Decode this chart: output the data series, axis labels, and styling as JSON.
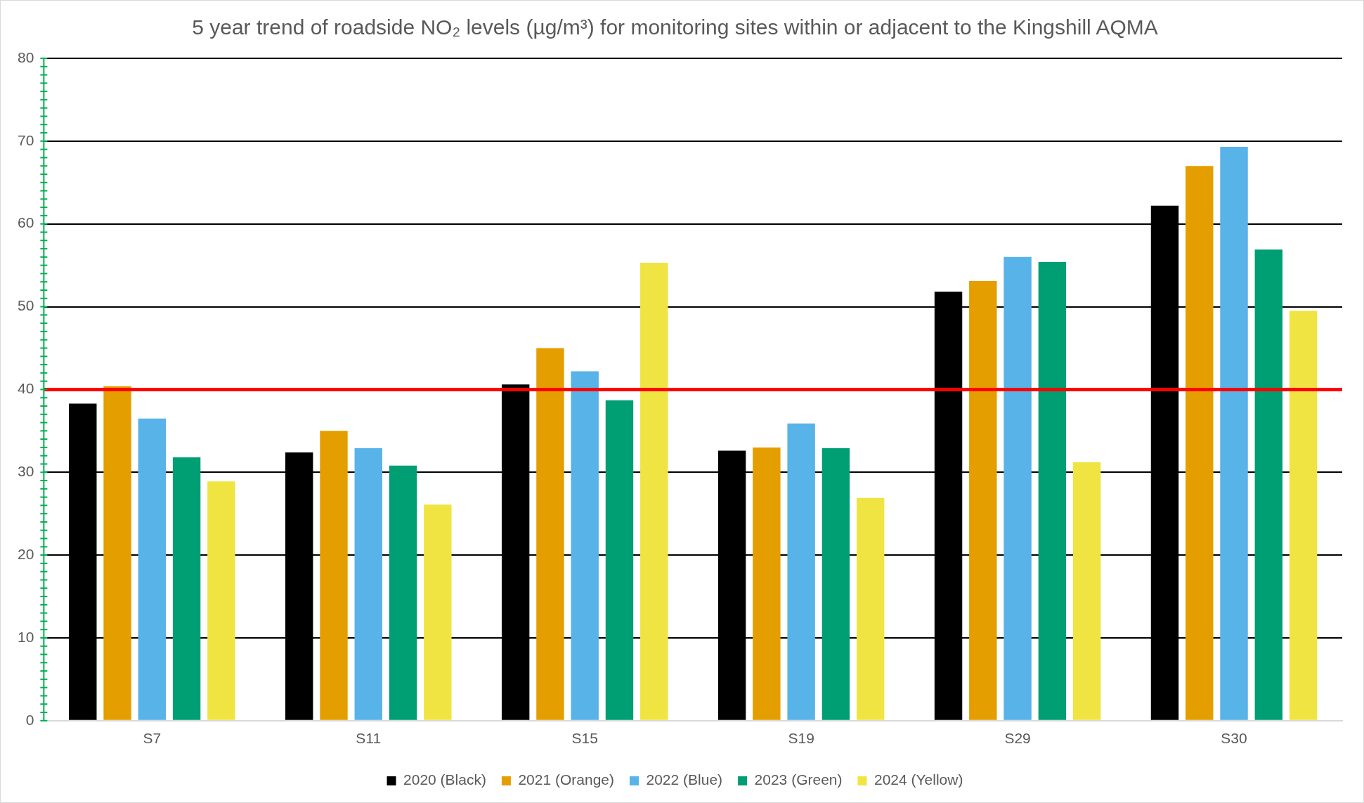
{
  "chart_data": {
    "type": "bar",
    "title": "5 year trend of roadside NO₂ levels (µg/m³) for monitoring sites within or adjacent to the Kingshill AQMA",
    "categories": [
      "S7",
      "S11",
      "S15",
      "S19",
      "S29",
      "S30"
    ],
    "series": [
      {
        "name": "2020 (Black)",
        "color": "#000000",
        "values": [
          38.3,
          32.4,
          40.6,
          32.6,
          51.8,
          62.2
        ]
      },
      {
        "name": "2021 (Orange)",
        "color": "#e49e00",
        "values": [
          40.4,
          35.0,
          45.0,
          33.0,
          53.1,
          67.0
        ]
      },
      {
        "name": "2022 (Blue)",
        "color": "#57b3e8",
        "values": [
          36.5,
          32.9,
          42.2,
          35.9,
          56.0,
          69.3
        ]
      },
      {
        "name": "2023 (Green)",
        "color": "#009e73",
        "values": [
          31.8,
          30.8,
          38.7,
          32.9,
          55.4,
          56.9
        ]
      },
      {
        "name": "2024 (Yellow)",
        "color": "#f0e442",
        "values": [
          28.9,
          26.1,
          55.3,
          26.9,
          31.2,
          49.5
        ]
      }
    ],
    "ylim": [
      0,
      80
    ],
    "yticks": [
      0,
      10,
      20,
      30,
      40,
      50,
      60,
      70,
      80
    ],
    "grid": "y",
    "legend": "bottom",
    "ref_lines": [
      {
        "axis": "y",
        "value": 40,
        "color": "#ff0000"
      }
    ]
  }
}
